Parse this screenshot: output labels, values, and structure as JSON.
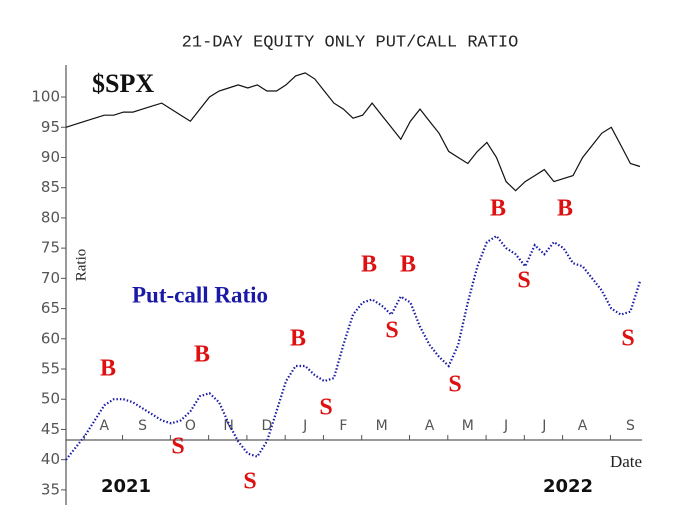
{
  "chart_data": {
    "type": "line",
    "title": "21-DAY EQUITY ONLY PUT/CALL RATIO",
    "y_label": "Ratio",
    "x_label": "Date",
    "year_labels": [
      "2021",
      "2022"
    ],
    "categories": [
      null,
      null,
      null,
      null,
      "A",
      null,
      null,
      null,
      "S",
      null,
      null,
      null,
      null,
      "O",
      null,
      null,
      null,
      "N",
      null,
      null,
      null,
      "D",
      null,
      null,
      null,
      "J",
      null,
      null,
      null,
      "F",
      null,
      null,
      null,
      "M",
      null,
      null,
      null,
      null,
      "A",
      null,
      null,
      null,
      "M",
      null,
      null,
      null,
      "J",
      null,
      null,
      null,
      "J",
      null,
      null,
      null,
      "A",
      null,
      null,
      null,
      null,
      "S",
      null
    ],
    "series": [
      {
        "name": "$SPX",
        "color": "#111111",
        "style": "solid",
        "values": [
          95,
          95.5,
          96,
          96.5,
          97,
          97,
          97.5,
          97.5,
          98,
          98.5,
          99,
          98,
          97,
          96,
          98,
          100,
          101,
          101.5,
          102,
          101.5,
          102,
          101,
          101,
          102,
          103.5,
          104,
          103,
          101,
          99,
          98,
          96.5,
          97,
          99,
          97,
          95,
          93,
          96,
          98,
          96,
          94,
          91,
          90,
          89,
          91,
          92.5,
          90,
          86,
          84.5,
          86,
          87,
          88,
          86,
          86.5,
          87,
          90,
          92,
          94,
          95,
          92,
          89,
          88.5
        ]
      },
      {
        "name": "Put-call Ratio",
        "color": "#1a1aa6",
        "style": "dotted",
        "values": [
          40,
          42,
          44,
          46.5,
          49,
          50,
          50,
          49.5,
          48.5,
          47.5,
          46.5,
          46,
          46.5,
          48,
          50.5,
          51,
          49.5,
          46,
          43,
          41,
          40.5,
          43,
          48,
          53,
          55.5,
          55.5,
          54,
          53,
          53.5,
          59,
          64,
          66,
          66.5,
          65.5,
          64,
          67,
          66,
          62,
          59,
          57,
          55.5,
          59,
          66,
          72,
          76,
          77,
          75,
          74,
          72,
          75.5,
          74,
          76,
          75,
          72.5,
          72,
          70,
          68,
          65,
          64,
          64.5,
          69.5
        ]
      }
    ],
    "annotations": [
      "B",
      "S",
      "B",
      "S",
      "B",
      "S",
      "B",
      "S",
      "B",
      "S",
      "B",
      "S",
      "B",
      "S"
    ],
    "annotation_color": "#dd1111",
    "ylim": [
      32.5,
      105.3
    ],
    "yticks": [
      35,
      40,
      45,
      50,
      55,
      60,
      65,
      70,
      75,
      80,
      85,
      90,
      95,
      100
    ]
  }
}
